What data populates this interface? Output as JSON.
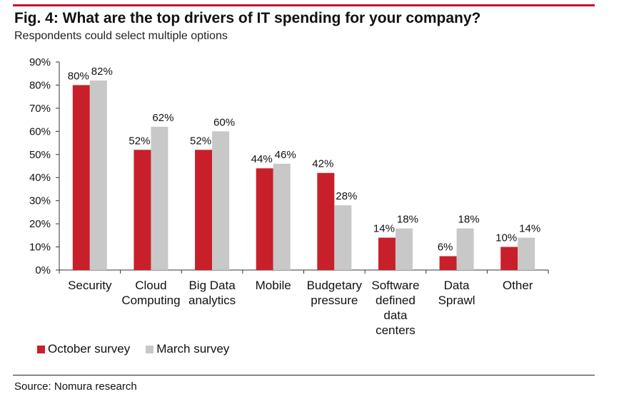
{
  "header": {
    "title": "Fig. 4: What are the top drivers of IT spending for your company?",
    "subtitle": "Respondents could select multiple options"
  },
  "source": "Source: Nomura research",
  "chart_data": {
    "type": "bar",
    "categories": [
      [
        "Security"
      ],
      [
        "Cloud",
        "Computing"
      ],
      [
        "Big Data",
        "analytics"
      ],
      [
        "Mobile"
      ],
      [
        "Budgetary",
        "pressure"
      ],
      [
        "Software",
        "defined",
        "data",
        "centers"
      ],
      [
        "Data",
        "Sprawl"
      ],
      [
        "Other"
      ]
    ],
    "series": [
      {
        "name": "October survey",
        "color": "#c8202a",
        "values": [
          80,
          52,
          52,
          44,
          42,
          14,
          6,
          10
        ],
        "labels": [
          "80%",
          "52%",
          "52%",
          "44%",
          "42%",
          "14%",
          "6%",
          "10%"
        ]
      },
      {
        "name": "March survey",
        "color": "#c8c8c8",
        "values": [
          82,
          62,
          60,
          46,
          28,
          18,
          18,
          14
        ],
        "labels": [
          "82%",
          "62%",
          "60%",
          "46%",
          "28%",
          "18%",
          "18%",
          "14%"
        ]
      }
    ],
    "y_ticks": [
      "0%",
      "10%",
      "20%",
      "30%",
      "40%",
      "50%",
      "60%",
      "70%",
      "80%",
      "90%"
    ],
    "ylim": [
      0,
      90
    ],
    "grid": false,
    "legend_position": "bottom-left"
  }
}
